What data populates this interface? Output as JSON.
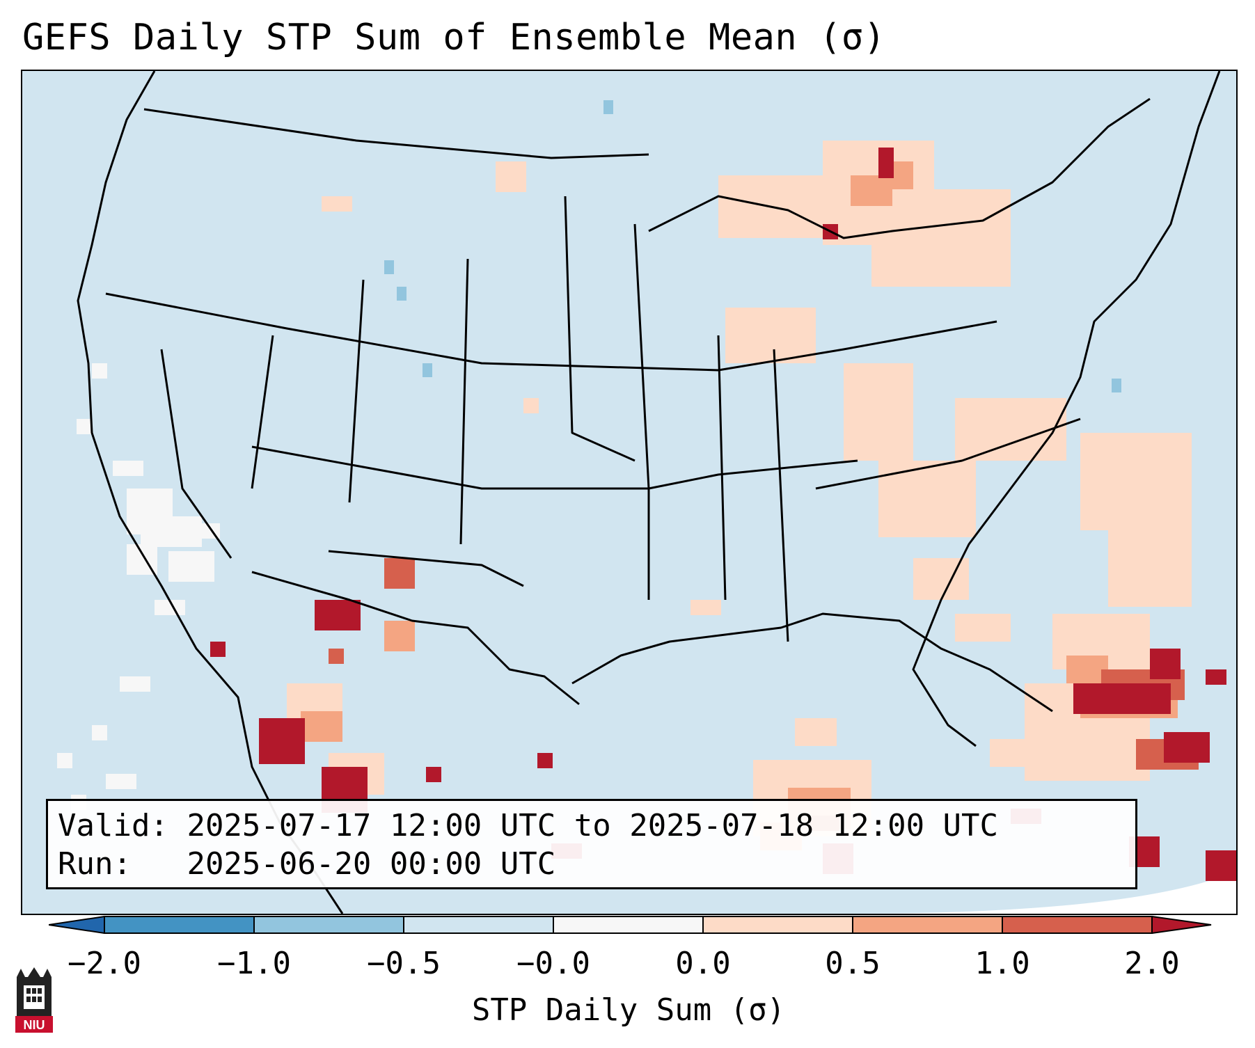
{
  "title": "GEFS Daily STP Sum of Ensemble Mean (σ)",
  "info": {
    "valid_label": "Valid:",
    "valid_value": "2025-07-17 12:00 UTC to 2025-07-18 12:00 UTC",
    "run_label": "Run:",
    "run_value": "2025-06-20 00:00 UTC"
  },
  "colorbar": {
    "title": "STP Daily Sum (σ)",
    "ticks": [
      "−2.0",
      "−1.0",
      "−0.5",
      "−0.0",
      "0.0",
      "0.5",
      "1.0",
      "2.0"
    ],
    "colors": {
      "below": "#2166ac",
      "bins": [
        "#4393c3",
        "#92c5de",
        "#d1e5f0",
        "#f7f7f7",
        "#fddbc7",
        "#f4a582",
        "#d6604d"
      ],
      "above": "#b2182b"
    }
  },
  "map": {
    "ocean_color": "#d1e5f0",
    "land_color": "#d1e5f0",
    "boundary_color": "#000000",
    "logo_text": "NIU"
  }
}
